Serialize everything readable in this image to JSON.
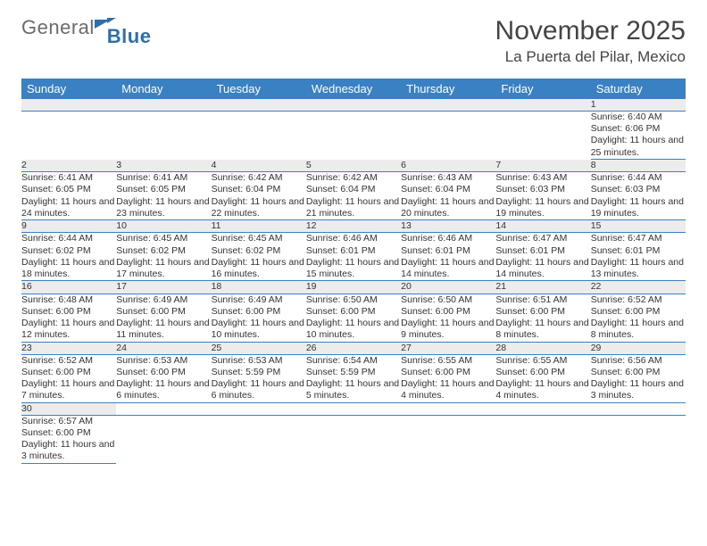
{
  "brand": {
    "general": "General",
    "blue": "Blue"
  },
  "title": "November 2025",
  "location": "La Puerta del Pilar, Mexico",
  "colors": {
    "header_bg": "#3a81c4",
    "header_fg": "#ffffff",
    "daynum_bg": "#ececec",
    "rule": "#3a81c4"
  },
  "weekdays": [
    "Sunday",
    "Monday",
    "Tuesday",
    "Wednesday",
    "Thursday",
    "Friday",
    "Saturday"
  ],
  "weeks": [
    [
      null,
      null,
      null,
      null,
      null,
      null,
      {
        "n": "1",
        "sr": "Sunrise: 6:40 AM",
        "ss": "Sunset: 6:06 PM",
        "dl": "Daylight: 11 hours and 25 minutes."
      }
    ],
    [
      {
        "n": "2",
        "sr": "Sunrise: 6:41 AM",
        "ss": "Sunset: 6:05 PM",
        "dl": "Daylight: 11 hours and 24 minutes."
      },
      {
        "n": "3",
        "sr": "Sunrise: 6:41 AM",
        "ss": "Sunset: 6:05 PM",
        "dl": "Daylight: 11 hours and 23 minutes."
      },
      {
        "n": "4",
        "sr": "Sunrise: 6:42 AM",
        "ss": "Sunset: 6:04 PM",
        "dl": "Daylight: 11 hours and 22 minutes."
      },
      {
        "n": "5",
        "sr": "Sunrise: 6:42 AM",
        "ss": "Sunset: 6:04 PM",
        "dl": "Daylight: 11 hours and 21 minutes."
      },
      {
        "n": "6",
        "sr": "Sunrise: 6:43 AM",
        "ss": "Sunset: 6:04 PM",
        "dl": "Daylight: 11 hours and 20 minutes."
      },
      {
        "n": "7",
        "sr": "Sunrise: 6:43 AM",
        "ss": "Sunset: 6:03 PM",
        "dl": "Daylight: 11 hours and 19 minutes."
      },
      {
        "n": "8",
        "sr": "Sunrise: 6:44 AM",
        "ss": "Sunset: 6:03 PM",
        "dl": "Daylight: 11 hours and 19 minutes."
      }
    ],
    [
      {
        "n": "9",
        "sr": "Sunrise: 6:44 AM",
        "ss": "Sunset: 6:02 PM",
        "dl": "Daylight: 11 hours and 18 minutes."
      },
      {
        "n": "10",
        "sr": "Sunrise: 6:45 AM",
        "ss": "Sunset: 6:02 PM",
        "dl": "Daylight: 11 hours and 17 minutes."
      },
      {
        "n": "11",
        "sr": "Sunrise: 6:45 AM",
        "ss": "Sunset: 6:02 PM",
        "dl": "Daylight: 11 hours and 16 minutes."
      },
      {
        "n": "12",
        "sr": "Sunrise: 6:46 AM",
        "ss": "Sunset: 6:01 PM",
        "dl": "Daylight: 11 hours and 15 minutes."
      },
      {
        "n": "13",
        "sr": "Sunrise: 6:46 AM",
        "ss": "Sunset: 6:01 PM",
        "dl": "Daylight: 11 hours and 14 minutes."
      },
      {
        "n": "14",
        "sr": "Sunrise: 6:47 AM",
        "ss": "Sunset: 6:01 PM",
        "dl": "Daylight: 11 hours and 14 minutes."
      },
      {
        "n": "15",
        "sr": "Sunrise: 6:47 AM",
        "ss": "Sunset: 6:01 PM",
        "dl": "Daylight: 11 hours and 13 minutes."
      }
    ],
    [
      {
        "n": "16",
        "sr": "Sunrise: 6:48 AM",
        "ss": "Sunset: 6:00 PM",
        "dl": "Daylight: 11 hours and 12 minutes."
      },
      {
        "n": "17",
        "sr": "Sunrise: 6:49 AM",
        "ss": "Sunset: 6:00 PM",
        "dl": "Daylight: 11 hours and 11 minutes."
      },
      {
        "n": "18",
        "sr": "Sunrise: 6:49 AM",
        "ss": "Sunset: 6:00 PM",
        "dl": "Daylight: 11 hours and 10 minutes."
      },
      {
        "n": "19",
        "sr": "Sunrise: 6:50 AM",
        "ss": "Sunset: 6:00 PM",
        "dl": "Daylight: 11 hours and 10 minutes."
      },
      {
        "n": "20",
        "sr": "Sunrise: 6:50 AM",
        "ss": "Sunset: 6:00 PM",
        "dl": "Daylight: 11 hours and 9 minutes."
      },
      {
        "n": "21",
        "sr": "Sunrise: 6:51 AM",
        "ss": "Sunset: 6:00 PM",
        "dl": "Daylight: 11 hours and 8 minutes."
      },
      {
        "n": "22",
        "sr": "Sunrise: 6:52 AM",
        "ss": "Sunset: 6:00 PM",
        "dl": "Daylight: 11 hours and 8 minutes."
      }
    ],
    [
      {
        "n": "23",
        "sr": "Sunrise: 6:52 AM",
        "ss": "Sunset: 6:00 PM",
        "dl": "Daylight: 11 hours and 7 minutes."
      },
      {
        "n": "24",
        "sr": "Sunrise: 6:53 AM",
        "ss": "Sunset: 6:00 PM",
        "dl": "Daylight: 11 hours and 6 minutes."
      },
      {
        "n": "25",
        "sr": "Sunrise: 6:53 AM",
        "ss": "Sunset: 5:59 PM",
        "dl": "Daylight: 11 hours and 6 minutes."
      },
      {
        "n": "26",
        "sr": "Sunrise: 6:54 AM",
        "ss": "Sunset: 5:59 PM",
        "dl": "Daylight: 11 hours and 5 minutes."
      },
      {
        "n": "27",
        "sr": "Sunrise: 6:55 AM",
        "ss": "Sunset: 6:00 PM",
        "dl": "Daylight: 11 hours and 4 minutes."
      },
      {
        "n": "28",
        "sr": "Sunrise: 6:55 AM",
        "ss": "Sunset: 6:00 PM",
        "dl": "Daylight: 11 hours and 4 minutes."
      },
      {
        "n": "29",
        "sr": "Sunrise: 6:56 AM",
        "ss": "Sunset: 6:00 PM",
        "dl": "Daylight: 11 hours and 3 minutes."
      }
    ],
    [
      {
        "n": "30",
        "sr": "Sunrise: 6:57 AM",
        "ss": "Sunset: 6:00 PM",
        "dl": "Daylight: 11 hours and 3 minutes."
      },
      null,
      null,
      null,
      null,
      null,
      null
    ]
  ]
}
